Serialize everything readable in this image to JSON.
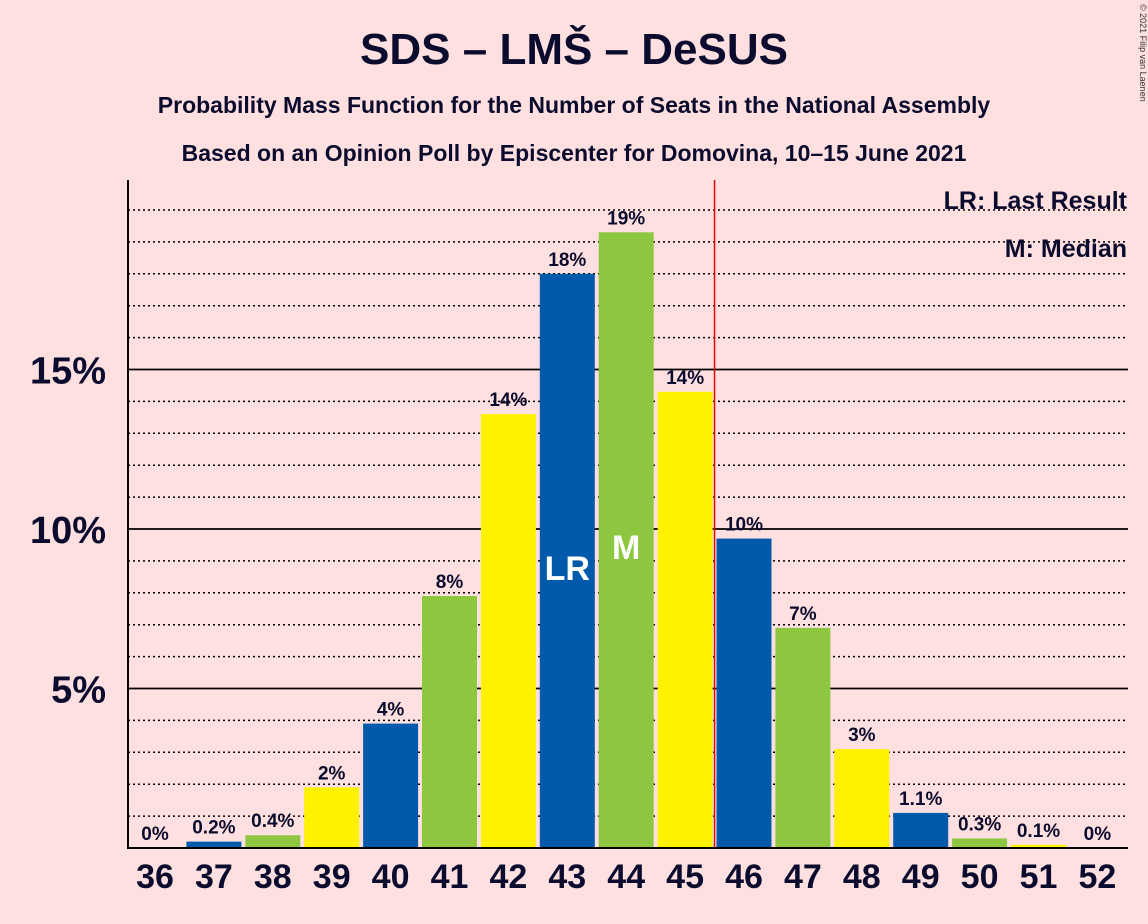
{
  "chart_data": {
    "type": "bar",
    "title": "SDS – LMŠ – DeSUS",
    "subtitle1": "Probability Mass Function for the Number of Seats in the National Assembly",
    "subtitle2": "Based on an Opinion Poll by Episcenter for Domovina, 10–15 June 2021",
    "copyright": "© 2021 Filip van Laenen",
    "categories": [
      "36",
      "37",
      "38",
      "39",
      "40",
      "41",
      "42",
      "43",
      "44",
      "45",
      "46",
      "47",
      "48",
      "49",
      "50",
      "51",
      "52"
    ],
    "values": [
      0,
      0.2,
      0.4,
      1.9,
      3.9,
      7.9,
      13.6,
      18.0,
      19.3,
      14.3,
      9.7,
      6.9,
      3.1,
      1.1,
      0.3,
      0.1,
      0
    ],
    "value_labels": [
      "0%",
      "0.2%",
      "0.4%",
      "2%",
      "4%",
      "8%",
      "14%",
      "18%",
      "19%",
      "14%",
      "10%",
      "7%",
      "3%",
      "1.1%",
      "0.3%",
      "0.1%",
      "0%"
    ],
    "bar_colors": [
      "#005aab",
      "#005aab",
      "#8dc63f",
      "#fff200",
      "#005aab",
      "#8dc63f",
      "#fff200",
      "#005aab",
      "#8dc63f",
      "#fff200",
      "#005aab",
      "#8dc63f",
      "#fff200",
      "#005aab",
      "#8dc63f",
      "#fff200",
      "#005aab"
    ],
    "yticks": [
      5,
      10,
      15
    ],
    "ytick_labels": [
      "5%",
      "10%",
      "15%"
    ],
    "ylim": [
      0,
      21
    ],
    "minor_grid_step": 1,
    "last_result_seat": "43",
    "last_result_label": "LR",
    "median_seat": "44",
    "median_label": "M",
    "majority_line_after": "45",
    "majority_line_color": "#e00000",
    "legend": [
      "LR: Last Result",
      "M: Median"
    ],
    "legend_position": "top-right"
  }
}
